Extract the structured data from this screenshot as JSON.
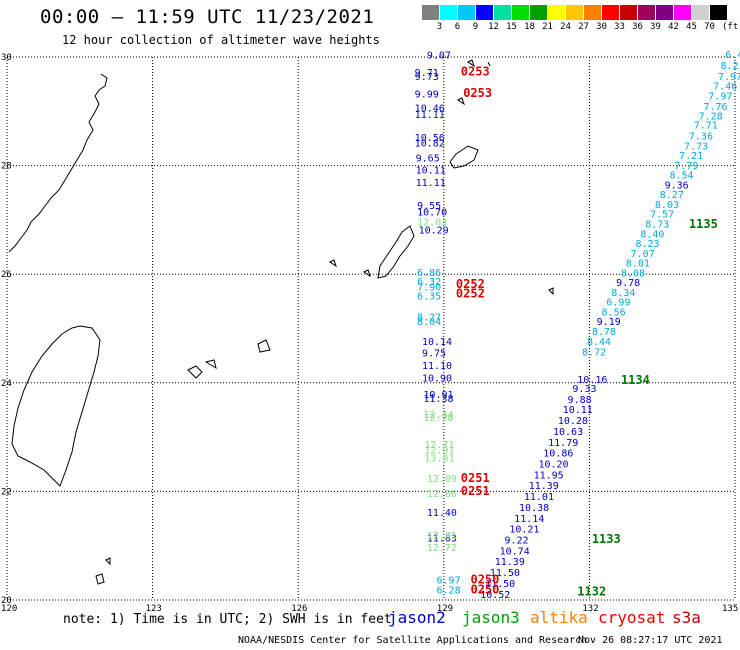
{
  "header": {
    "title": "00:00 – 11:59 UTC 11/23/2021",
    "subtitle": "12 hour collection of altimeter wave heights"
  },
  "scale": {
    "colors": [
      "#808080",
      "#00ffff",
      "#00c8ff",
      "#0000ff",
      "#00e0a0",
      "#00e000",
      "#00a000",
      "#ffff00",
      "#ffc800",
      "#ff8000",
      "#ff0000",
      "#c80000",
      "#a00060",
      "#800080",
      "#ff00ff",
      "#d0d0d0",
      "#000000"
    ],
    "labels": [
      "3",
      "6",
      "9",
      "12",
      "15",
      "18",
      "21",
      "24",
      "27",
      "30",
      "33",
      "36",
      "39",
      "42",
      "45",
      "70"
    ],
    "unit": "(ft)"
  },
  "axes": {
    "lat_labels": [
      "30",
      "28",
      "26",
      "24",
      "22",
      "20"
    ],
    "lon_labels": [
      "120",
      "123",
      "126",
      "129",
      "132",
      "135"
    ]
  },
  "colors": {
    "jason2": "#0000cc",
    "jason3": "#00a000",
    "altika": "#ff8000",
    "cryosat": "#ff0000",
    "s3a": "#c80000",
    "j3_light": "#7ee07e",
    "cyan": "#00aadd",
    "pass_green": "#007700"
  },
  "tracks": {
    "west_blue": [
      {
        "lat": 29.97,
        "lon": 128.65,
        "v": "9.07"
      },
      {
        "lat": 29.65,
        "lon": 128.4,
        "v": "9.71"
      },
      {
        "lat": 29.58,
        "lon": 128.4,
        "v": "9.73"
      },
      {
        "lat": 29.25,
        "lon": 128.4,
        "v": "9.99"
      },
      {
        "lat": 29.0,
        "lon": 128.4,
        "v": "10.46"
      },
      {
        "lat": 28.88,
        "lon": 128.4,
        "v": "11.11"
      },
      {
        "lat": 28.45,
        "lon": 128.4,
        "v": "10.56"
      },
      {
        "lat": 28.35,
        "lon": 128.4,
        "v": "10.82"
      },
      {
        "lat": 28.08,
        "lon": 128.42,
        "v": "9.65"
      },
      {
        "lat": 27.85,
        "lon": 128.42,
        "v": "10.11"
      },
      {
        "lat": 27.62,
        "lon": 128.42,
        "v": "11.11"
      },
      {
        "lat": 27.2,
        "lon": 128.45,
        "v": "9.55"
      },
      {
        "lat": 27.08,
        "lon": 128.45,
        "v": "10.70"
      },
      {
        "lat": 26.75,
        "lon": 128.48,
        "v": "10.29"
      },
      {
        "lat": 24.7,
        "lon": 128.55,
        "v": "10.14"
      },
      {
        "lat": 24.48,
        "lon": 128.55,
        "v": "9.75"
      },
      {
        "lat": 24.25,
        "lon": 128.55,
        "v": "11.10"
      },
      {
        "lat": 24.02,
        "lon": 128.55,
        "v": "10.90"
      },
      {
        "lat": 23.72,
        "lon": 128.58,
        "v": "10.91"
      },
      {
        "lat": 23.65,
        "lon": 128.58,
        "v": "11.38"
      },
      {
        "lat": 21.55,
        "lon": 128.65,
        "v": "11.40"
      },
      {
        "lat": 21.08,
        "lon": 128.65,
        "v": "11.63"
      }
    ],
    "west_light_green": [
      {
        "lat": 26.9,
        "lon": 128.45,
        "v": "12.03"
      },
      {
        "lat": 23.35,
        "lon": 128.58,
        "v": "12.44"
      },
      {
        "lat": 23.3,
        "lon": 128.58,
        "v": "12.28"
      },
      {
        "lat": 22.8,
        "lon": 128.6,
        "v": "12.71"
      },
      {
        "lat": 22.7,
        "lon": 128.6,
        "v": "12.91"
      },
      {
        "lat": 22.55,
        "lon": 128.6,
        "v": "13.01"
      },
      {
        "lat": 22.17,
        "lon": 128.65,
        "v": "12.09"
      },
      {
        "lat": 21.9,
        "lon": 128.65,
        "v": "12.06"
      },
      {
        "lat": 21.12,
        "lon": 128.65,
        "v": "12.81"
      },
      {
        "lat": 20.9,
        "lon": 128.65,
        "v": "12.72"
      }
    ],
    "west_cyan": [
      {
        "lat": 25.97,
        "lon": 128.45,
        "v": "6.86"
      },
      {
        "lat": 25.8,
        "lon": 128.45,
        "v": "6.32"
      },
      {
        "lat": 25.7,
        "lon": 128.45,
        "v": "7.90"
      },
      {
        "lat": 25.53,
        "lon": 128.45,
        "v": "6.35"
      },
      {
        "lat": 25.15,
        "lon": 128.45,
        "v": "8.27"
      },
      {
        "lat": 25.06,
        "lon": 128.45,
        "v": "8.04"
      },
      {
        "lat": 20.3,
        "lon": 128.85,
        "v": "6.97"
      },
      {
        "lat": 20.12,
        "lon": 128.85,
        "v": "6.28"
      }
    ],
    "east_cyan": [
      {
        "lat": 29.98,
        "lon": 134.8,
        "v": "6.4"
      },
      {
        "lat": 29.78,
        "lon": 134.7,
        "v": "8.2"
      },
      {
        "lat": 29.58,
        "lon": 134.65,
        "v": "7.97"
      },
      {
        "lat": 29.4,
        "lon": 134.55,
        "v": "7.46"
      },
      {
        "lat": 29.22,
        "lon": 134.45,
        "v": "7.97"
      },
      {
        "lat": 29.02,
        "lon": 134.35,
        "v": "7.76"
      },
      {
        "lat": 28.85,
        "lon": 134.25,
        "v": "7.28"
      },
      {
        "lat": 28.68,
        "lon": 134.15,
        "v": "7.71"
      },
      {
        "lat": 28.48,
        "lon": 134.05,
        "v": "7.36"
      },
      {
        "lat": 28.3,
        "lon": 133.95,
        "v": "7.73"
      },
      {
        "lat": 28.12,
        "lon": 133.85,
        "v": "7.21"
      },
      {
        "lat": 27.94,
        "lon": 133.75,
        "v": "7.79"
      },
      {
        "lat": 27.76,
        "lon": 133.65,
        "v": "8.54"
      },
      {
        "lat": 27.4,
        "lon": 133.45,
        "v": "8.27"
      },
      {
        "lat": 27.22,
        "lon": 133.35,
        "v": "8.03"
      },
      {
        "lat": 27.04,
        "lon": 133.25,
        "v": "7.57"
      },
      {
        "lat": 26.86,
        "lon": 133.15,
        "v": "8.73"
      },
      {
        "lat": 26.68,
        "lon": 133.05,
        "v": "8.40"
      },
      {
        "lat": 26.5,
        "lon": 132.95,
        "v": "8.23"
      },
      {
        "lat": 26.32,
        "lon": 132.85,
        "v": "7.07"
      },
      {
        "lat": 26.14,
        "lon": 132.75,
        "v": "8.01"
      },
      {
        "lat": 25.96,
        "lon": 132.65,
        "v": "8.08"
      },
      {
        "lat": 25.6,
        "lon": 132.45,
        "v": "8.34"
      },
      {
        "lat": 25.42,
        "lon": 132.35,
        "v": "6.99"
      },
      {
        "lat": 25.24,
        "lon": 132.25,
        "v": "8.56"
      },
      {
        "lat": 24.88,
        "lon": 132.05,
        "v": "8.78"
      },
      {
        "lat": 24.7,
        "lon": 131.95,
        "v": "8.44"
      },
      {
        "lat": 24.5,
        "lon": 131.85,
        "v": "8.72"
      }
    ],
    "east_blue": [
      {
        "lat": 27.58,
        "lon": 133.55,
        "v": "9.36"
      },
      {
        "lat": 25.78,
        "lon": 132.55,
        "v": "9.78"
      },
      {
        "lat": 25.06,
        "lon": 132.15,
        "v": "9.19"
      },
      {
        "lat": 24.0,
        "lon": 131.75,
        "v": "10.16"
      },
      {
        "lat": 23.83,
        "lon": 131.65,
        "v": "9.33"
      },
      {
        "lat": 23.63,
        "lon": 131.55,
        "v": "9.88"
      },
      {
        "lat": 23.44,
        "lon": 131.45,
        "v": "10.11"
      },
      {
        "lat": 23.24,
        "lon": 131.35,
        "v": "10.28"
      },
      {
        "lat": 23.04,
        "lon": 131.25,
        "v": "10.63"
      },
      {
        "lat": 22.84,
        "lon": 131.15,
        "v": "11.79"
      },
      {
        "lat": 22.64,
        "lon": 131.05,
        "v": "10.86"
      },
      {
        "lat": 22.44,
        "lon": 130.95,
        "v": "10.20"
      },
      {
        "lat": 22.24,
        "lon": 130.85,
        "v": "11.95"
      },
      {
        "lat": 22.04,
        "lon": 130.75,
        "v": "11.39"
      },
      {
        "lat": 21.84,
        "lon": 130.65,
        "v": "11.01"
      },
      {
        "lat": 21.64,
        "lon": 130.55,
        "v": "10.38"
      },
      {
        "lat": 21.44,
        "lon": 130.45,
        "v": "11.14"
      },
      {
        "lat": 21.24,
        "lon": 130.35,
        "v": "10.21"
      },
      {
        "lat": 21.04,
        "lon": 130.25,
        "v": "9.22"
      },
      {
        "lat": 20.84,
        "lon": 130.15,
        "v": "10.74"
      },
      {
        "lat": 20.64,
        "lon": 130.05,
        "v": "11.39"
      },
      {
        "lat": 20.44,
        "lon": 129.95,
        "v": "11.50"
      },
      {
        "lat": 20.24,
        "lon": 129.85,
        "v": "11.50"
      },
      {
        "lat": 20.04,
        "lon": 129.75,
        "v": "10.52"
      }
    ]
  },
  "pass_labels": [
    {
      "lat": 29.66,
      "lon": 129.35,
      "text": "0253",
      "sat": "cryosat"
    },
    {
      "lat": 29.26,
      "lon": 129.4,
      "text": "0253",
      "sat": "cryosat"
    },
    {
      "lat": 25.75,
      "lon": 129.25,
      "text": "0252",
      "sat": "cryosat"
    },
    {
      "lat": 25.57,
      "lon": 129.25,
      "text": "0252",
      "sat": "cryosat"
    },
    {
      "lat": 22.17,
      "lon": 129.35,
      "text": "0251",
      "sat": "cryosat"
    },
    {
      "lat": 21.93,
      "lon": 129.35,
      "text": "0251",
      "sat": "cryosat"
    },
    {
      "lat": 20.3,
      "lon": 129.55,
      "text": "0250",
      "sat": "cryosat"
    },
    {
      "lat": 20.12,
      "lon": 129.55,
      "text": "0250",
      "sat": "cryosat"
    },
    {
      "lat": 26.85,
      "lon": 134.05,
      "text": "1135",
      "sat": "jason3"
    },
    {
      "lat": 23.98,
      "lon": 132.65,
      "text": "1134",
      "sat": "jason3"
    },
    {
      "lat": 21.05,
      "lon": 132.05,
      "text": "1133",
      "sat": "jason3"
    },
    {
      "lat": 20.08,
      "lon": 131.75,
      "text": "1132",
      "sat": "jason3"
    }
  ],
  "footer": {
    "note": "note: 1) Time is in UTC; 2) SWH is in feet",
    "legend": [
      {
        "name": "jason2",
        "color": "#0000cc"
      },
      {
        "name": "jason3",
        "color": "#00a000"
      },
      {
        "name": "altika",
        "color": "#ff8000"
      },
      {
        "name": "cryosat",
        "color": "#ff0000"
      },
      {
        "name": "s3a",
        "color": "#c80000"
      }
    ],
    "credit": "NOAA/NESDIS Center for Satellite Applications and Research",
    "timestamp": "Nov 26 08:27:17 UTC 2021"
  }
}
